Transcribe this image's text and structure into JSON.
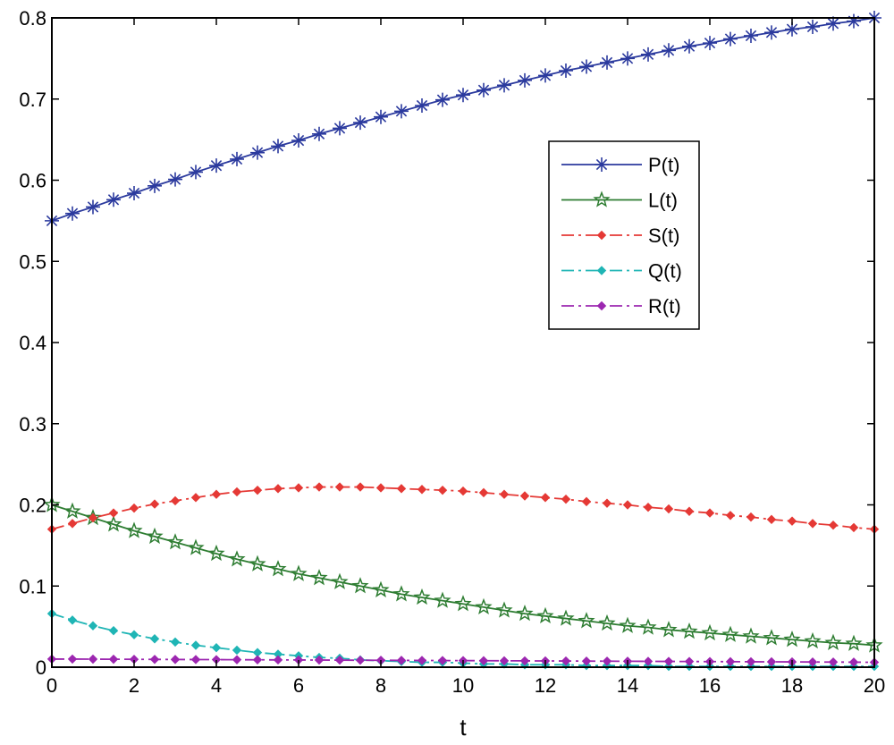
{
  "chart_data": {
    "type": "line",
    "title": "",
    "xlabel": "t",
    "ylabel": "",
    "xlim": [
      0,
      20
    ],
    "ylim": [
      0,
      0.8
    ],
    "xticks": [
      "0",
      "2",
      "4",
      "6",
      "8",
      "10",
      "12",
      "14",
      "16",
      "18",
      "20"
    ],
    "yticks": [
      "0",
      "0.1",
      "0.2",
      "0.3",
      "0.4",
      "0.5",
      "0.6",
      "0.7",
      "0.8"
    ],
    "legend_position": "upper-right-inside",
    "x": [
      0,
      0.5,
      1,
      1.5,
      2,
      2.5,
      3,
      3.5,
      4,
      4.5,
      5,
      5.5,
      6,
      6.5,
      7,
      7.5,
      8,
      8.5,
      9,
      9.5,
      10,
      10.5,
      11,
      11.5,
      12,
      12.5,
      13,
      13.5,
      14,
      14.5,
      15,
      15.5,
      16,
      16.5,
      17,
      17.5,
      18,
      18.5,
      19,
      19.5,
      20
    ],
    "series": [
      {
        "name": "P(t)",
        "color": "#2b3a9e",
        "line": "solid",
        "marker": "asterisk",
        "values": [
          0.55,
          0.559,
          0.567,
          0.576,
          0.584,
          0.593,
          0.601,
          0.61,
          0.618,
          0.626,
          0.634,
          0.642,
          0.649,
          0.657,
          0.664,
          0.671,
          0.678,
          0.685,
          0.692,
          0.699,
          0.705,
          0.711,
          0.717,
          0.723,
          0.729,
          0.735,
          0.74,
          0.745,
          0.75,
          0.755,
          0.76,
          0.765,
          0.769,
          0.774,
          0.778,
          0.782,
          0.786,
          0.789,
          0.793,
          0.796,
          0.8
        ]
      },
      {
        "name": "L(t)",
        "color": "#2e7d32",
        "line": "solid",
        "marker": "star",
        "values": [
          0.2,
          0.192,
          0.184,
          0.176,
          0.168,
          0.161,
          0.154,
          0.147,
          0.14,
          0.133,
          0.127,
          0.121,
          0.115,
          0.11,
          0.105,
          0.1,
          0.095,
          0.09,
          0.086,
          0.082,
          0.078,
          0.074,
          0.07,
          0.066,
          0.063,
          0.06,
          0.057,
          0.054,
          0.051,
          0.049,
          0.046,
          0.044,
          0.042,
          0.04,
          0.038,
          0.036,
          0.034,
          0.032,
          0.03,
          0.029,
          0.027
        ]
      },
      {
        "name": "S(t)",
        "color": "#e53935",
        "line": "dashdot",
        "marker": "diamond",
        "values": [
          0.17,
          0.177,
          0.184,
          0.19,
          0.196,
          0.201,
          0.205,
          0.209,
          0.213,
          0.216,
          0.218,
          0.22,
          0.221,
          0.222,
          0.222,
          0.222,
          0.221,
          0.22,
          0.219,
          0.218,
          0.217,
          0.215,
          0.213,
          0.211,
          0.209,
          0.207,
          0.204,
          0.202,
          0.2,
          0.197,
          0.195,
          0.192,
          0.19,
          0.187,
          0.185,
          0.182,
          0.18,
          0.177,
          0.175,
          0.172,
          0.17
        ]
      },
      {
        "name": "Q(t)",
        "color": "#1fb5b5",
        "line": "dashdot",
        "marker": "diamond",
        "values": [
          0.066,
          0.058,
          0.051,
          0.045,
          0.04,
          0.035,
          0.031,
          0.027,
          0.024,
          0.021,
          0.018,
          0.016,
          0.014,
          0.012,
          0.011,
          0.009,
          0.008,
          0.007,
          0.006,
          0.006,
          0.005,
          0.004,
          0.004,
          0.003,
          0.003,
          0.003,
          0.002,
          0.002,
          0.002,
          0.002,
          0.001,
          0.001,
          0.001,
          0.001,
          0.001,
          0.001,
          0.001,
          0.001,
          0.001,
          0.001,
          0.001
        ]
      },
      {
        "name": "R(t)",
        "color": "#9c27b0",
        "line": "dashdot",
        "marker": "diamond",
        "values": [
          0.01,
          0.01,
          0.0099,
          0.0098,
          0.0097,
          0.0096,
          0.0095,
          0.0094,
          0.0093,
          0.0092,
          0.0091,
          0.009,
          0.0089,
          0.0088,
          0.0087,
          0.0086,
          0.0085,
          0.0084,
          0.0083,
          0.0082,
          0.0081,
          0.008,
          0.0079,
          0.0078,
          0.0077,
          0.0076,
          0.0075,
          0.0074,
          0.0073,
          0.0072,
          0.0071,
          0.007,
          0.0069,
          0.0068,
          0.0067,
          0.0066,
          0.0065,
          0.0064,
          0.0063,
          0.0062,
          0.006
        ]
      }
    ]
  }
}
